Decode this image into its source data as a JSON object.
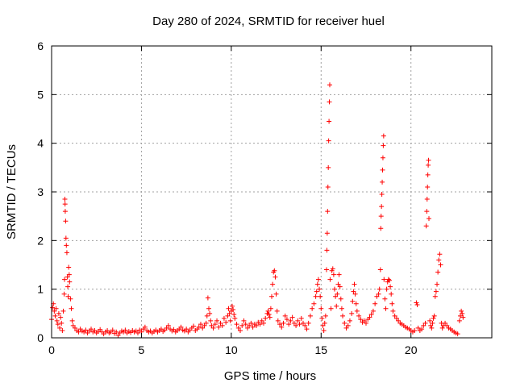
{
  "chart_data": {
    "type": "scatter",
    "title": "Day 280 of 2024, SRMTID for receiver huel",
    "xlabel": "GPS time / hours",
    "ylabel": "SRMTID / TECUs",
    "xlim": [
      0,
      24.5
    ],
    "ylim": [
      0,
      6
    ],
    "xticks": [
      0,
      5,
      10,
      15,
      20
    ],
    "yticks": [
      0,
      1,
      2,
      3,
      4,
      5,
      6
    ],
    "xtick_labels": [
      "0",
      "5",
      "10",
      "15",
      "20"
    ],
    "ytick_labels": [
      "0",
      "1",
      "2",
      "3",
      "4",
      "5",
      "6"
    ],
    "grid": true,
    "marker": "+",
    "color": "#ff0000",
    "series": [
      {
        "name": "huel",
        "points": [
          [
            0.0,
            0.38
          ],
          [
            0.05,
            0.62
          ],
          [
            0.1,
            0.7
          ],
          [
            0.15,
            0.55
          ],
          [
            0.2,
            0.45
          ],
          [
            0.25,
            0.6
          ],
          [
            0.3,
            0.35
          ],
          [
            0.35,
            0.28
          ],
          [
            0.4,
            0.5
          ],
          [
            0.45,
            0.2
          ],
          [
            0.5,
            0.42
          ],
          [
            0.55,
            0.3
          ],
          [
            0.6,
            0.15
          ],
          [
            0.65,
            0.55
          ],
          [
            0.7,
            0.9
          ],
          [
            0.72,
            1.2
          ],
          [
            0.74,
            2.85
          ],
          [
            0.75,
            2.75
          ],
          [
            0.76,
            2.6
          ],
          [
            0.78,
            2.4
          ],
          [
            0.8,
            2.05
          ],
          [
            0.82,
            1.9
          ],
          [
            0.85,
            1.75
          ],
          [
            0.88,
            1.25
          ],
          [
            0.9,
            1.05
          ],
          [
            0.92,
            0.85
          ],
          [
            0.95,
            1.45
          ],
          [
            0.98,
            1.3
          ],
          [
            1.0,
            1.15
          ],
          [
            1.05,
            0.8
          ],
          [
            1.1,
            0.6
          ],
          [
            1.15,
            0.35
          ],
          [
            1.2,
            0.25
          ],
          [
            1.3,
            0.2
          ],
          [
            1.4,
            0.15
          ],
          [
            1.5,
            0.12
          ],
          [
            1.6,
            0.18
          ],
          [
            1.7,
            0.14
          ],
          [
            1.8,
            0.12
          ],
          [
            1.9,
            0.16
          ],
          [
            2.0,
            0.1
          ],
          [
            2.1,
            0.14
          ],
          [
            2.2,
            0.18
          ],
          [
            2.3,
            0.12
          ],
          [
            2.4,
            0.15
          ],
          [
            2.5,
            0.1
          ],
          [
            2.6,
            0.13
          ],
          [
            2.7,
            0.17
          ],
          [
            2.8,
            0.12
          ],
          [
            2.9,
            0.08
          ],
          [
            3.0,
            0.12
          ],
          [
            3.1,
            0.15
          ],
          [
            3.2,
            0.1
          ],
          [
            3.3,
            0.12
          ],
          [
            3.4,
            0.16
          ],
          [
            3.5,
            0.09
          ],
          [
            3.6,
            0.12
          ],
          [
            3.7,
            0.05
          ],
          [
            3.8,
            0.1
          ],
          [
            3.9,
            0.14
          ],
          [
            4.0,
            0.12
          ],
          [
            4.1,
            0.16
          ],
          [
            4.2,
            0.1
          ],
          [
            4.3,
            0.13
          ],
          [
            4.4,
            0.11
          ],
          [
            4.5,
            0.15
          ],
          [
            4.6,
            0.12
          ],
          [
            4.7,
            0.14
          ],
          [
            4.8,
            0.1
          ],
          [
            4.9,
            0.16
          ],
          [
            5.0,
            0.12
          ],
          [
            5.1,
            0.18
          ],
          [
            5.2,
            0.22
          ],
          [
            5.3,
            0.15
          ],
          [
            5.4,
            0.12
          ],
          [
            5.5,
            0.14
          ],
          [
            5.6,
            0.1
          ],
          [
            5.7,
            0.13
          ],
          [
            5.8,
            0.16
          ],
          [
            5.9,
            0.12
          ],
          [
            6.0,
            0.15
          ],
          [
            6.1,
            0.18
          ],
          [
            6.2,
            0.13
          ],
          [
            6.3,
            0.16
          ],
          [
            6.4,
            0.2
          ],
          [
            6.5,
            0.25
          ],
          [
            6.6,
            0.18
          ],
          [
            6.7,
            0.14
          ],
          [
            6.8,
            0.17
          ],
          [
            6.9,
            0.12
          ],
          [
            7.0,
            0.15
          ],
          [
            7.1,
            0.18
          ],
          [
            7.2,
            0.22
          ],
          [
            7.3,
            0.16
          ],
          [
            7.4,
            0.14
          ],
          [
            7.5,
            0.18
          ],
          [
            7.6,
            0.12
          ],
          [
            7.7,
            0.16
          ],
          [
            7.8,
            0.2
          ],
          [
            7.9,
            0.24
          ],
          [
            8.0,
            0.15
          ],
          [
            8.1,
            0.18
          ],
          [
            8.2,
            0.22
          ],
          [
            8.3,
            0.28
          ],
          [
            8.4,
            0.2
          ],
          [
            8.5,
            0.25
          ],
          [
            8.6,
            0.3
          ],
          [
            8.65,
            0.45
          ],
          [
            8.7,
            0.82
          ],
          [
            8.75,
            0.6
          ],
          [
            8.8,
            0.5
          ],
          [
            8.85,
            0.35
          ],
          [
            8.9,
            0.25
          ],
          [
            9.0,
            0.2
          ],
          [
            9.1,
            0.28
          ],
          [
            9.2,
            0.35
          ],
          [
            9.3,
            0.22
          ],
          [
            9.4,
            0.3
          ],
          [
            9.5,
            0.25
          ],
          [
            9.6,
            0.4
          ],
          [
            9.7,
            0.32
          ],
          [
            9.8,
            0.45
          ],
          [
            9.85,
            0.6
          ],
          [
            9.9,
            0.5
          ],
          [
            9.95,
            0.35
          ],
          [
            10.0,
            0.55
          ],
          [
            10.05,
            0.65
          ],
          [
            10.1,
            0.58
          ],
          [
            10.15,
            0.48
          ],
          [
            10.2,
            0.4
          ],
          [
            10.3,
            0.28
          ],
          [
            10.4,
            0.2
          ],
          [
            10.5,
            0.15
          ],
          [
            10.6,
            0.25
          ],
          [
            10.7,
            0.35
          ],
          [
            10.8,
            0.28
          ],
          [
            10.9,
            0.2
          ],
          [
            11.0,
            0.25
          ],
          [
            11.1,
            0.3
          ],
          [
            11.2,
            0.22
          ],
          [
            11.3,
            0.28
          ],
          [
            11.4,
            0.25
          ],
          [
            11.5,
            0.32
          ],
          [
            11.6,
            0.28
          ],
          [
            11.7,
            0.35
          ],
          [
            11.8,
            0.3
          ],
          [
            11.9,
            0.4
          ],
          [
            12.0,
            0.5
          ],
          [
            12.05,
            0.55
          ],
          [
            12.1,
            0.48
          ],
          [
            12.15,
            0.42
          ],
          [
            12.2,
            0.6
          ],
          [
            12.25,
            0.85
          ],
          [
            12.3,
            1.1
          ],
          [
            12.35,
            1.35
          ],
          [
            12.4,
            1.38
          ],
          [
            12.45,
            1.25
          ],
          [
            12.5,
            0.9
          ],
          [
            12.55,
            0.55
          ],
          [
            12.6,
            0.35
          ],
          [
            12.7,
            0.28
          ],
          [
            12.8,
            0.22
          ],
          [
            12.9,
            0.3
          ],
          [
            13.0,
            0.45
          ],
          [
            13.1,
            0.38
          ],
          [
            13.2,
            0.28
          ],
          [
            13.3,
            0.35
          ],
          [
            13.4,
            0.42
          ],
          [
            13.5,
            0.3
          ],
          [
            13.6,
            0.25
          ],
          [
            13.7,
            0.35
          ],
          [
            13.8,
            0.28
          ],
          [
            13.9,
            0.4
          ],
          [
            14.0,
            0.3
          ],
          [
            14.1,
            0.25
          ],
          [
            14.2,
            0.18
          ],
          [
            14.3,
            0.3
          ],
          [
            14.4,
            0.45
          ],
          [
            14.5,
            0.6
          ],
          [
            14.6,
            0.7
          ],
          [
            14.7,
            0.85
          ],
          [
            14.75,
            0.95
          ],
          [
            14.8,
            1.1
          ],
          [
            14.85,
            1.2
          ],
          [
            14.9,
            1.0
          ],
          [
            14.95,
            0.85
          ],
          [
            15.0,
            0.6
          ],
          [
            15.05,
            0.4
          ],
          [
            15.1,
            0.25
          ],
          [
            15.15,
            0.15
          ],
          [
            15.2,
            0.3
          ],
          [
            15.25,
            0.45
          ],
          [
            15.3,
            1.4
          ],
          [
            15.32,
            1.8
          ],
          [
            15.34,
            2.15
          ],
          [
            15.36,
            2.6
          ],
          [
            15.38,
            3.1
          ],
          [
            15.4,
            3.5
          ],
          [
            15.42,
            4.05
          ],
          [
            15.44,
            4.45
          ],
          [
            15.46,
            4.85
          ],
          [
            15.48,
            5.2
          ],
          [
            15.5,
            1.2
          ],
          [
            15.55,
            0.6
          ],
          [
            15.6,
            1.38
          ],
          [
            15.65,
            1.42
          ],
          [
            15.7,
            1.3
          ],
          [
            15.75,
            1.0
          ],
          [
            15.8,
            0.85
          ],
          [
            15.85,
            0.65
          ],
          [
            15.9,
            0.9
          ],
          [
            15.95,
            1.1
          ],
          [
            16.0,
            1.3
          ],
          [
            16.05,
            1.05
          ],
          [
            16.1,
            0.8
          ],
          [
            16.15,
            0.6
          ],
          [
            16.2,
            0.45
          ],
          [
            16.3,
            0.3
          ],
          [
            16.4,
            0.2
          ],
          [
            16.5,
            0.25
          ],
          [
            16.6,
            0.35
          ],
          [
            16.7,
            0.5
          ],
          [
            16.75,
            0.75
          ],
          [
            16.8,
            0.95
          ],
          [
            16.85,
            1.1
          ],
          [
            16.9,
            0.9
          ],
          [
            16.95,
            0.7
          ],
          [
            17.0,
            0.55
          ],
          [
            17.1,
            0.45
          ],
          [
            17.2,
            0.38
          ],
          [
            17.3,
            0.32
          ],
          [
            17.4,
            0.35
          ],
          [
            17.5,
            0.3
          ],
          [
            17.6,
            0.38
          ],
          [
            17.7,
            0.42
          ],
          [
            17.8,
            0.48
          ],
          [
            17.9,
            0.55
          ],
          [
            18.0,
            0.7
          ],
          [
            18.1,
            0.85
          ],
          [
            18.2,
            0.9
          ],
          [
            18.25,
            1.0
          ],
          [
            18.3,
            1.4
          ],
          [
            18.32,
            2.25
          ],
          [
            18.34,
            2.5
          ],
          [
            18.36,
            2.7
          ],
          [
            18.38,
            2.95
          ],
          [
            18.4,
            3.2
          ],
          [
            18.42,
            3.45
          ],
          [
            18.44,
            3.7
          ],
          [
            18.46,
            3.95
          ],
          [
            18.48,
            4.15
          ],
          [
            18.5,
            1.2
          ],
          [
            18.55,
            0.8
          ],
          [
            18.6,
            0.6
          ],
          [
            18.65,
            1.0
          ],
          [
            18.7,
            1.15
          ],
          [
            18.75,
            1.2
          ],
          [
            18.8,
            1.18
          ],
          [
            18.85,
            1.05
          ],
          [
            18.9,
            0.9
          ],
          [
            18.95,
            0.7
          ],
          [
            19.0,
            0.55
          ],
          [
            19.1,
            0.45
          ],
          [
            19.2,
            0.4
          ],
          [
            19.3,
            0.35
          ],
          [
            19.4,
            0.3
          ],
          [
            19.5,
            0.28
          ],
          [
            19.6,
            0.25
          ],
          [
            19.7,
            0.22
          ],
          [
            19.8,
            0.2
          ],
          [
            19.9,
            0.18
          ],
          [
            20.0,
            0.15
          ],
          [
            20.1,
            0.12
          ],
          [
            20.2,
            0.15
          ],
          [
            20.3,
            0.72
          ],
          [
            20.35,
            0.68
          ],
          [
            20.4,
            0.2
          ],
          [
            20.5,
            0.15
          ],
          [
            20.6,
            0.18
          ],
          [
            20.7,
            0.25
          ],
          [
            20.8,
            0.3
          ],
          [
            20.85,
            2.3
          ],
          [
            20.88,
            2.6
          ],
          [
            20.9,
            2.85
          ],
          [
            20.92,
            3.1
          ],
          [
            20.94,
            3.35
          ],
          [
            20.96,
            3.55
          ],
          [
            20.98,
            3.65
          ],
          [
            21.0,
            2.45
          ],
          [
            21.05,
            0.35
          ],
          [
            21.1,
            0.25
          ],
          [
            21.15,
            0.2
          ],
          [
            21.2,
            0.3
          ],
          [
            21.25,
            0.4
          ],
          [
            21.3,
            0.45
          ],
          [
            21.35,
            0.85
          ],
          [
            21.4,
            0.95
          ],
          [
            21.45,
            1.1
          ],
          [
            21.5,
            1.35
          ],
          [
            21.55,
            1.6
          ],
          [
            21.6,
            1.72
          ],
          [
            21.65,
            1.5
          ],
          [
            21.7,
            0.3
          ],
          [
            21.75,
            0.2
          ],
          [
            21.8,
            0.25
          ],
          [
            21.9,
            0.3
          ],
          [
            22.0,
            0.25
          ],
          [
            22.1,
            0.2
          ],
          [
            22.2,
            0.18
          ],
          [
            22.3,
            0.15
          ],
          [
            22.4,
            0.12
          ],
          [
            22.5,
            0.1
          ],
          [
            22.6,
            0.08
          ],
          [
            22.7,
            0.35
          ],
          [
            22.75,
            0.45
          ],
          [
            22.8,
            0.55
          ],
          [
            22.85,
            0.5
          ],
          [
            22.9,
            0.42
          ]
        ]
      }
    ]
  }
}
